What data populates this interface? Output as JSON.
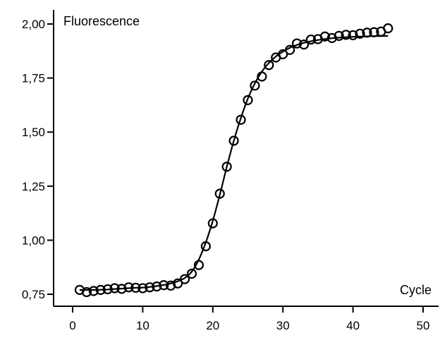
{
  "chart_data": {
    "type": "scatter",
    "title": "",
    "xlabel": "Cycle",
    "ylabel": "Fluorescence",
    "xlim": [
      0,
      50
    ],
    "ylim": [
      0.75,
      2.0
    ],
    "x_ticks": [
      0,
      10,
      20,
      30,
      40,
      50
    ],
    "x_tick_labels": [
      "0",
      "10",
      "20",
      "30",
      "40",
      "50"
    ],
    "y_ticks": [
      0.75,
      1.0,
      1.25,
      1.5,
      1.75,
      2.0
    ],
    "y_tick_labels": [
      "0,75",
      "1,00",
      "1,25",
      "1,50",
      "1,75",
      "2,00"
    ],
    "grid": false,
    "series": [
      {
        "kind": "points",
        "marker": "open-circle",
        "x": [
          1,
          2,
          3,
          4,
          5,
          6,
          7,
          8,
          9,
          10,
          11,
          12,
          13,
          14,
          15,
          16,
          17,
          18,
          19,
          20,
          21,
          22,
          23,
          24,
          25,
          26,
          27,
          28,
          29,
          30,
          31,
          32,
          33,
          34,
          35,
          36,
          37,
          38,
          39,
          40,
          41,
          42,
          43,
          44,
          45
        ],
        "y": [
          0.77,
          0.76,
          0.765,
          0.77,
          0.773,
          0.778,
          0.775,
          0.782,
          0.78,
          0.778,
          0.782,
          0.786,
          0.792,
          0.79,
          0.8,
          0.82,
          0.845,
          0.885,
          0.972,
          1.078,
          1.215,
          1.34,
          1.46,
          1.557,
          1.648,
          1.715,
          1.757,
          1.81,
          1.845,
          1.86,
          1.88,
          1.91,
          1.905,
          1.928,
          1.93,
          1.942,
          1.935,
          1.945,
          1.95,
          1.948,
          1.955,
          1.96,
          1.962,
          1.965,
          1.98
        ]
      },
      {
        "kind": "fit-curve",
        "x": [
          1,
          2,
          3,
          4,
          5,
          6,
          7,
          8,
          9,
          10,
          11,
          12,
          13,
          14,
          15,
          16,
          17,
          18,
          19,
          20,
          21,
          22,
          23,
          24,
          25,
          26,
          27,
          28,
          29,
          30,
          31,
          32,
          33,
          34,
          35,
          36,
          37,
          38,
          39,
          40,
          41,
          42,
          43,
          44,
          45
        ],
        "y": [
          0.77,
          0.77,
          0.77,
          0.771,
          0.772,
          0.774,
          0.776,
          0.778,
          0.78,
          0.781,
          0.784,
          0.788,
          0.793,
          0.8,
          0.81,
          0.825,
          0.855,
          0.91,
          0.99,
          1.09,
          1.21,
          1.34,
          1.46,
          1.565,
          1.655,
          1.725,
          1.78,
          1.82,
          1.85,
          1.872,
          1.89,
          1.903,
          1.913,
          1.92,
          1.926,
          1.93,
          1.934,
          1.937,
          1.939,
          1.941,
          1.942,
          1.943,
          1.944,
          1.944,
          1.945
        ]
      }
    ]
  }
}
